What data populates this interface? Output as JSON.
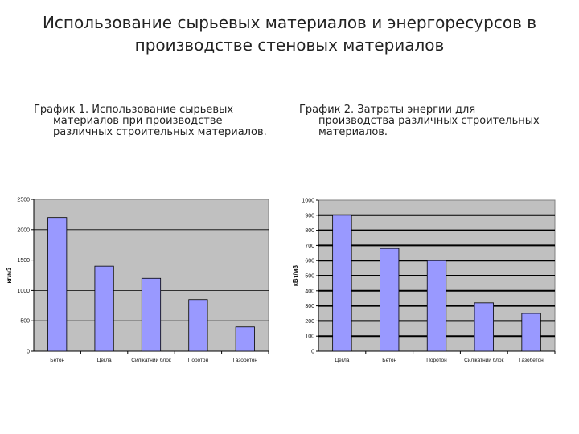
{
  "title_line1": "Использование сырьевых материалов и энергоресурсов в",
  "title_line2": "производстве стеновых материалов",
  "chart1_caption": [
    "График 1. Использование сырьевых",
    "материалов при производстве",
    "различных строительных материалов."
  ],
  "chart2_caption": [
    "График 2. Затраты энергии для",
    "производства различных строительных",
    "материалов."
  ],
  "colors": {
    "bar": "#9999ff",
    "plot_bg": "#c0c0c0",
    "grid": "#000000",
    "bar_stroke": "#000000"
  },
  "chart_data": [
    {
      "type": "bar",
      "categories": [
        "Бетон",
        "Цегла",
        "Силікатний блок",
        "Поротон",
        "Газобетон"
      ],
      "values": [
        2200,
        1400,
        1200,
        850,
        400
      ],
      "ylabel": "кг/м3",
      "ylim": [
        0,
        2500
      ],
      "yticks": [
        0,
        500,
        1000,
        1500,
        2000,
        2500
      ],
      "grid": true
    },
    {
      "type": "bar",
      "categories": [
        "Цегла",
        "Бетон",
        "Поротон",
        "Силікатний блок",
        "Газобетон"
      ],
      "values": [
        900,
        680,
        600,
        320,
        250
      ],
      "ylabel": "кВт/м3",
      "ylim": [
        0,
        1000
      ],
      "yticks": [
        0,
        100,
        200,
        300,
        400,
        500,
        600,
        700,
        800,
        900,
        1000
      ],
      "grid": true
    }
  ]
}
